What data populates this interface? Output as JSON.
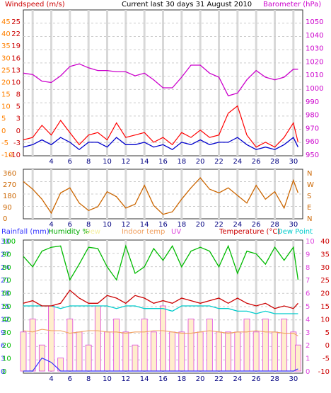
{
  "chart_data": [
    {
      "type": "line",
      "title": "Current last 30 days 31 August 2010",
      "left_label": "Windspeed (m/s)",
      "right_label": "Barometer (hPa)",
      "left_ticks_outer": [
        "45",
        "40",
        "35",
        "30",
        "25",
        "20",
        "15",
        "10",
        "5",
        "0",
        "-5",
        "-10"
      ],
      "left_ticks_inner": [
        "25",
        "22",
        "19",
        "16",
        "13",
        "10",
        "8",
        "5",
        "3",
        "0",
        "-3",
        "-10"
      ],
      "right_ticks": [
        "1050",
        "1040",
        "1030",
        "1020",
        "1010",
        "1000",
        "990",
        "980",
        "970",
        "960",
        "950"
      ],
      "x_ticks": [
        "4",
        "6",
        "8",
        "10",
        "12",
        "14",
        "16",
        "18",
        "20",
        "22",
        "24",
        "26",
        "28",
        "30"
      ],
      "grid": true,
      "colors": {
        "wind_speed": "#0000cc",
        "wind_gust": "#ff0000",
        "barometer": "#cc00cc",
        "axis_left_outer": "#ff8000",
        "axis_left_inner": "#cc0000"
      },
      "series": [
        {
          "name": "Barometer (hPa)",
          "x": [
            1,
            2,
            3,
            4,
            5,
            6,
            7,
            8,
            9,
            10,
            11,
            12,
            13,
            14,
            15,
            16,
            17,
            18,
            19,
            20,
            21,
            22,
            23,
            24,
            25,
            26,
            27,
            28,
            29,
            30,
            30.5
          ],
          "values": [
            1011,
            1010,
            1005,
            1004,
            1009,
            1016,
            1018,
            1015,
            1013,
            1013,
            1012,
            1012,
            1009,
            1011,
            1006,
            1000,
            1000,
            1008,
            1017,
            1017,
            1011,
            1008,
            994,
            996,
            1006,
            1013,
            1008,
            1006,
            1008,
            1014,
            1014
          ]
        },
        {
          "name": "Windspeed (m/s)",
          "x": [
            1,
            2,
            3,
            4,
            5,
            6,
            7,
            8,
            9,
            10,
            11,
            12,
            13,
            14,
            15,
            16,
            17,
            18,
            19,
            20,
            21,
            22,
            23,
            24,
            25,
            26,
            27,
            28,
            29,
            30,
            30.5
          ],
          "values": [
            -7,
            -6,
            -4,
            -6,
            -3,
            -5,
            -8,
            -5,
            -5,
            -7,
            -3,
            -6,
            -6,
            -5,
            -7,
            -6,
            -8,
            -5,
            -6,
            -4,
            -6,
            -5,
            -5,
            -3,
            -6,
            -8,
            -7,
            -8,
            -6,
            -3,
            -7
          ]
        },
        {
          "name": "Gust",
          "x": [
            1,
            2,
            3,
            4,
            5,
            6,
            7,
            8,
            9,
            10,
            11,
            12,
            13,
            14,
            15,
            16,
            17,
            18,
            19,
            20,
            21,
            22,
            23,
            24,
            25,
            26,
            27,
            28,
            29,
            30,
            30.5
          ],
          "values": [
            -4,
            -3,
            2,
            -2,
            4,
            -1,
            -6,
            -2,
            -1,
            -4,
            3,
            -3,
            -2,
            -1,
            -5,
            -3,
            -6,
            -1,
            -3,
            0,
            -3,
            -2,
            7,
            10,
            -2,
            -7,
            -5,
            -7,
            -3,
            3,
            -5
          ]
        }
      ]
    },
    {
      "type": "line",
      "left_ticks": [
        "360",
        "270",
        "180",
        "90",
        "0"
      ],
      "right_ticks": [
        "N",
        "W",
        "S",
        "E",
        "N"
      ],
      "x_ticks": [
        "4",
        "6",
        "8",
        "10",
        "12",
        "14",
        "16",
        "18",
        "20",
        "22",
        "24",
        "26",
        "28",
        "30"
      ],
      "grid": true,
      "colors": {
        "line": "#cc6600"
      },
      "series": [
        {
          "name": "Wind direction",
          "x": [
            1,
            2,
            3,
            4,
            5,
            6,
            7,
            8,
            9,
            10,
            11,
            12,
            13,
            14,
            15,
            16,
            17,
            18,
            19,
            20,
            21,
            22,
            23,
            24,
            25,
            26,
            27,
            28,
            29,
            30,
            30.5
          ],
          "values": [
            290,
            230,
            150,
            40,
            200,
            240,
            120,
            60,
            90,
            210,
            170,
            80,
            110,
            260,
            100,
            30,
            50,
            150,
            240,
            320,
            230,
            200,
            240,
            180,
            120,
            260,
            150,
            210,
            80,
            300,
            200
          ]
        }
      ]
    },
    {
      "type": "line",
      "labels": {
        "rainfall": "Rainfall (mm)",
        "humidity": "Humidity %",
        "dewpoint_short": "Dew",
        "indoor": "Indoor temp",
        "uv": "UV",
        "temperature": "Temperature (°C)",
        "dewpoint": "Dew Point"
      },
      "axis_rain": [
        "30",
        "27",
        "24",
        "21",
        "18",
        "15",
        "12",
        "9",
        "6",
        "3",
        "0"
      ],
      "axis_humidity": [
        "100",
        "90",
        "80",
        "70",
        "60",
        "50",
        "40",
        "30",
        "20",
        "10",
        "0"
      ],
      "axis_uv": [
        "10",
        "9",
        "8",
        "7",
        "6",
        "5",
        "4",
        "3",
        "2",
        "1",
        "0"
      ],
      "axis_temp": [
        "40",
        "35",
        "30",
        "25",
        "20",
        "15",
        "10",
        "5",
        "0",
        "-5",
        "-10"
      ],
      "x_ticks": [
        "4",
        "6",
        "8",
        "10",
        "12",
        "14",
        "16",
        "18",
        "20",
        "22",
        "24",
        "26",
        "28",
        "30"
      ],
      "grid": true,
      "colors": {
        "rainfall": "#3333ff",
        "humidity": "#00bb00",
        "indoor": "#f0a060",
        "uv": "#dd44dd",
        "temperature": "#cc0000",
        "dewpoint": "#00cccc",
        "uv_fill": "#ffeecc"
      },
      "series": [
        {
          "name": "Humidity %",
          "x": [
            1,
            2,
            3,
            4,
            5,
            6,
            7,
            8,
            9,
            10,
            11,
            12,
            13,
            14,
            15,
            16,
            17,
            18,
            19,
            20,
            21,
            22,
            23,
            24,
            25,
            26,
            27,
            28,
            29,
            30,
            30.5
          ],
          "values": [
            88,
            80,
            92,
            95,
            96,
            70,
            82,
            95,
            94,
            80,
            70,
            96,
            75,
            80,
            94,
            85,
            96,
            80,
            92,
            95,
            92,
            80,
            96,
            75,
            92,
            90,
            82,
            95,
            85,
            95,
            70
          ]
        },
        {
          "name": "Indoor temp",
          "x": [
            1,
            2,
            3,
            4,
            5,
            6,
            7,
            8,
            9,
            10,
            11,
            12,
            13,
            14,
            15,
            16,
            17,
            18,
            19,
            20,
            21,
            22,
            23,
            24,
            25,
            26,
            27,
            28,
            29,
            30,
            30.5
          ],
          "values": [
            31,
            30,
            32,
            31,
            31,
            29,
            30,
            31,
            31,
            30,
            30,
            29,
            30,
            30,
            31,
            31,
            30,
            29,
            29,
            30,
            31,
            30,
            29,
            30,
            30,
            31,
            30,
            30,
            29,
            29,
            27
          ]
        },
        {
          "name": "Temperature (°C)",
          "x": [
            1,
            2,
            3,
            4,
            5,
            6,
            7,
            8,
            9,
            10,
            11,
            12,
            13,
            14,
            15,
            16,
            17,
            18,
            19,
            20,
            21,
            22,
            23,
            24,
            25,
            26,
            27,
            28,
            29,
            30,
            30.5
          ],
          "values": [
            16,
            17,
            15,
            15,
            16,
            21,
            18,
            16,
            16,
            19,
            18,
            16,
            19,
            18,
            16,
            17,
            16,
            18,
            17,
            16,
            17,
            18,
            16,
            18,
            16,
            15,
            16,
            14,
            15,
            14,
            16
          ]
        },
        {
          "name": "Dew Point",
          "x": [
            1,
            2,
            3,
            4,
            5,
            6,
            7,
            8,
            9,
            10,
            11,
            12,
            13,
            14,
            15,
            16,
            17,
            18,
            19,
            20,
            21,
            22,
            23,
            24,
            25,
            26,
            27,
            28,
            29,
            30,
            30.5
          ],
          "values": [
            15,
            15,
            15,
            15,
            14,
            15,
            15,
            15,
            15,
            15,
            14,
            15,
            15,
            14,
            14,
            14,
            13,
            15,
            15,
            15,
            15,
            14,
            14,
            13,
            13,
            12,
            13,
            12,
            12,
            12,
            12
          ]
        },
        {
          "name": "Rainfall (mm)",
          "x": [
            1,
            2,
            3,
            4,
            5,
            6,
            7,
            8,
            9,
            10,
            11,
            12,
            13,
            14,
            15,
            16,
            17,
            18,
            19,
            20,
            21,
            22,
            23,
            24,
            25,
            26,
            27,
            28,
            29,
            30,
            30.5
          ],
          "values": [
            0,
            0,
            3,
            2,
            0,
            0,
            0,
            0,
            0,
            0,
            0,
            0,
            0,
            0,
            0,
            0,
            0,
            0,
            0,
            0,
            0,
            0,
            0,
            0,
            0,
            0,
            0,
            0,
            0,
            0,
            0.5
          ]
        },
        {
          "name": "UV",
          "x": [
            1,
            2,
            3,
            4,
            5,
            6,
            7,
            8,
            9,
            10,
            11,
            12,
            13,
            14,
            15,
            16,
            17,
            18,
            19,
            20,
            21,
            22,
            23,
            24,
            25,
            26,
            27,
            28,
            29,
            30,
            30.5
          ],
          "values": [
            3,
            4,
            2,
            5,
            1,
            4,
            3,
            2,
            5,
            3,
            4,
            3,
            2,
            4,
            3,
            5,
            3,
            3,
            4,
            3,
            4,
            3,
            3,
            3,
            4,
            3,
            4,
            3,
            4,
            3,
            2
          ]
        }
      ]
    }
  ]
}
